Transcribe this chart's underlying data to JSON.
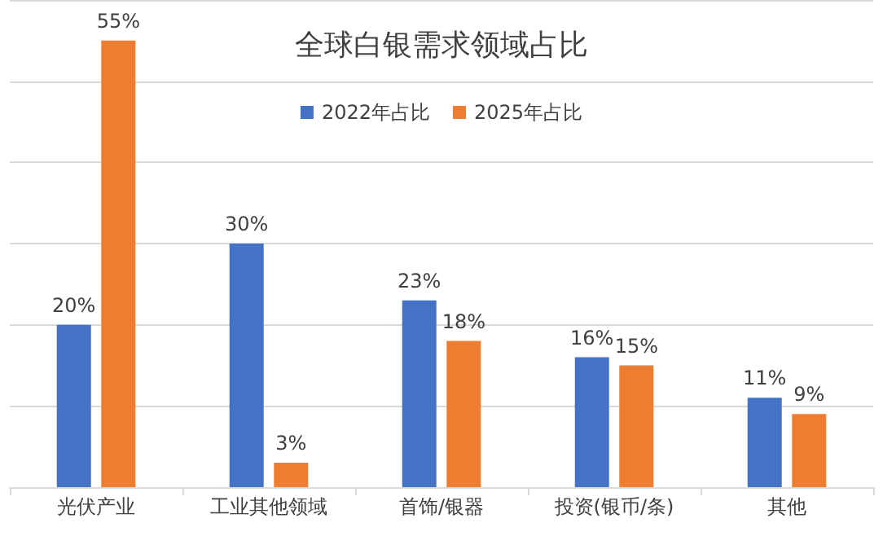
{
  "chart_data": {
    "type": "bar",
    "title": "全球白银需求领域占比",
    "categories": [
      "光伏产业",
      "工业其他领域",
      "首饰/银器",
      "投资(银币/条)",
      "其他"
    ],
    "series": [
      {
        "name": "2022年占比",
        "color": "#4472c4",
        "values": [
          20,
          30,
          23,
          16,
          11
        ],
        "value_labels": [
          "20%",
          "30%",
          "23%",
          "16%",
          "11%"
        ]
      },
      {
        "name": "2025年占比",
        "color": "#ed7d31",
        "values": [
          55,
          3,
          18,
          15,
          9
        ],
        "value_labels": [
          "55%",
          "3%",
          "18%",
          "15%",
          "9%"
        ]
      }
    ],
    "grid": "y",
    "legend": "top",
    "tick_labels": "x"
  }
}
